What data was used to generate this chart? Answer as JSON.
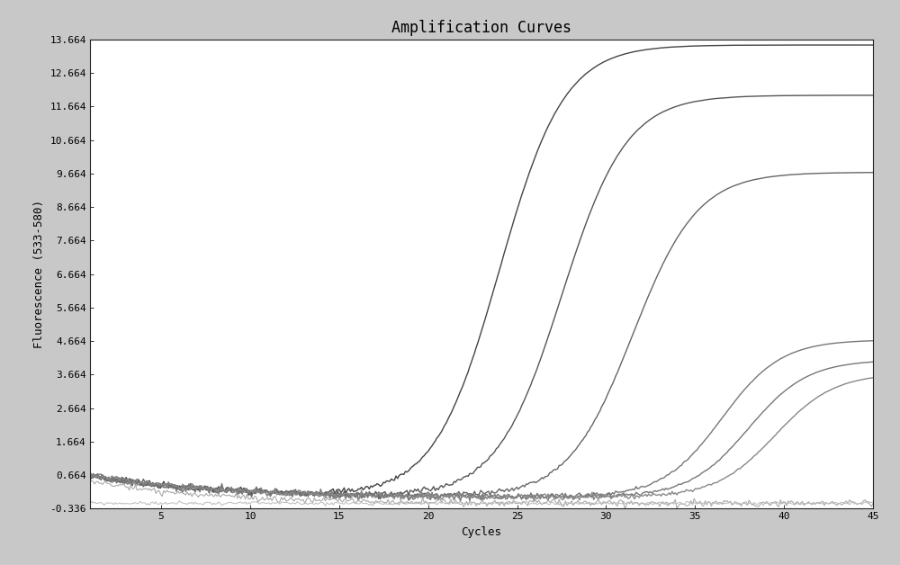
{
  "title": "Amplification Curves",
  "xlabel": "Cycles",
  "ylabel": "Fluorescence (533-580)",
  "xlim": [
    1,
    45
  ],
  "ylim": [
    -0.336,
    13.664
  ],
  "yticks": [
    -0.336,
    0.664,
    1.664,
    2.664,
    3.664,
    4.664,
    5.664,
    6.664,
    7.664,
    8.664,
    9.664,
    10.664,
    11.664,
    12.664,
    13.664
  ],
  "xticks": [
    5,
    10,
    15,
    20,
    25,
    30,
    35,
    40,
    45
  ],
  "background_color": "#c8c8c8",
  "plot_bg_color": "#ffffff",
  "title_fontsize": 12,
  "label_fontsize": 9,
  "tick_fontsize": 8,
  "curves": [
    {
      "threshold": 24.0,
      "L": 13.5,
      "k": 0.55,
      "baseline": 0.0,
      "color": "#444444",
      "lw": 1.0
    },
    {
      "threshold": 27.5,
      "L": 12.0,
      "k": 0.55,
      "baseline": 0.0,
      "color": "#555555",
      "lw": 1.0
    },
    {
      "threshold": 31.5,
      "L": 9.7,
      "k": 0.55,
      "baseline": 0.0,
      "color": "#666666",
      "lw": 1.0
    },
    {
      "threshold": 36.5,
      "L": 4.7,
      "k": 0.6,
      "baseline": 0.0,
      "color": "#777777",
      "lw": 1.0
    },
    {
      "threshold": 38.0,
      "L": 4.1,
      "k": 0.6,
      "baseline": 0.0,
      "color": "#777777",
      "lw": 1.0
    },
    {
      "threshold": 39.5,
      "L": 3.7,
      "k": 0.6,
      "baseline": 0.0,
      "color": "#888888",
      "lw": 1.0
    },
    {
      "threshold": 100.0,
      "L": 0.1,
      "k": 0.3,
      "baseline": -0.18,
      "color": "#aaaaaa",
      "lw": 0.8
    }
  ],
  "noise_amplitude": 0.05,
  "noise_seed": 7,
  "start_value": 0.664
}
